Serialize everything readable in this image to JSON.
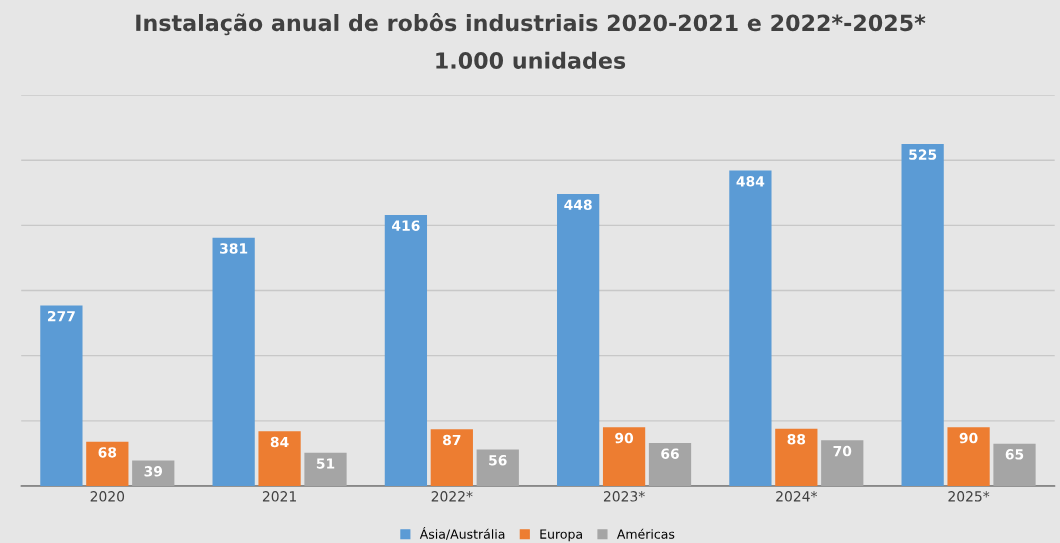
{
  "chart_data": {
    "type": "bar",
    "title": "Instalação anual de robôs industriais 2020-2021 e 2022*-2025*",
    "subtitle": "1.000 unidades",
    "categories": [
      "2020",
      "2021",
      "2022*",
      "2023*",
      "2024*",
      "2025*"
    ],
    "series": [
      {
        "name": "Ásia/Austrália",
        "color": "#5b9bd5",
        "values": [
          277,
          381,
          416,
          448,
          484,
          525
        ]
      },
      {
        "name": "Europa",
        "color": "#ed7d31",
        "values": [
          68,
          84,
          87,
          90,
          88,
          90
        ]
      },
      {
        "name": "Américas",
        "color": "#a5a5a5",
        "values": [
          39,
          51,
          56,
          66,
          70,
          65
        ]
      }
    ],
    "ylim": [
      0,
      600
    ],
    "yticks": [
      {
        "value": 0,
        "label": null
      },
      {
        "value": 100,
        "label": null
      },
      {
        "value": 200,
        "label": null
      },
      {
        "value": 300,
        "label": null
      },
      {
        "value": 400,
        "label": null
      },
      {
        "value": 500,
        "label": null
      },
      {
        "value": 600,
        "label": null
      }
    ],
    "tick_labels": "x",
    "grid": "y",
    "legend": "bottom",
    "data_labels": true
  }
}
